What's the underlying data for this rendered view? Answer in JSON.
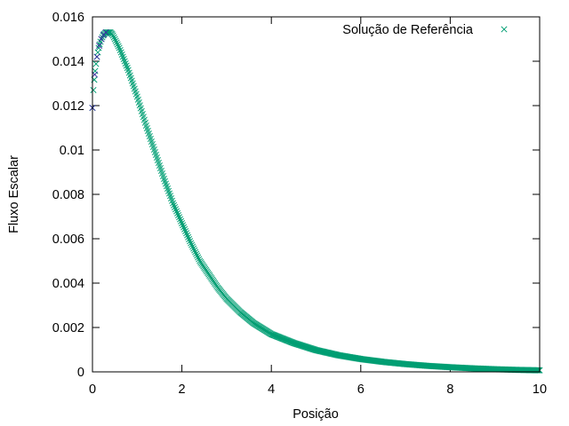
{
  "chart_data": {
    "type": "scatter",
    "title": "",
    "xlabel": "Posição",
    "ylabel": "Fluxo Escalar",
    "xlim": [
      0,
      10
    ],
    "ylim": [
      0,
      0.016
    ],
    "xticks": [
      "0",
      "2",
      "4",
      "6",
      "8",
      "10"
    ],
    "yticks": [
      "0",
      "0.002",
      "0.004",
      "0.006",
      "0.008",
      "0.01",
      "0.012",
      "0.014",
      "0.016"
    ],
    "grid": false,
    "legend_position": "top-right",
    "series": [
      {
        "name": "Solução de Referência",
        "marker": "x",
        "color": "#009e73",
        "x": [
          0.0,
          0.02,
          0.05,
          0.1,
          0.15,
          0.2,
          0.25,
          0.3,
          0.35,
          0.4,
          0.45,
          0.5,
          0.6,
          0.7,
          0.8,
          0.9,
          1.0,
          1.2,
          1.4,
          1.6,
          1.8,
          2.0,
          2.2,
          2.4,
          2.6,
          2.8,
          3.0,
          3.3,
          3.6,
          4.0,
          4.5,
          5.0,
          5.5,
          6.0,
          6.5,
          7.0,
          7.5,
          8.0,
          8.5,
          9.0,
          9.5,
          10.0
        ],
        "values": [
          0.0119,
          0.0127,
          0.0134,
          0.0142,
          0.0147,
          0.015,
          0.0152,
          0.0153,
          0.0153,
          0.0153,
          0.0152,
          0.015,
          0.0146,
          0.0141,
          0.0136,
          0.013,
          0.0124,
          0.0111,
          0.0099,
          0.0087,
          0.0076,
          0.0067,
          0.0058,
          0.005,
          0.0044,
          0.0038,
          0.0033,
          0.0027,
          0.0022,
          0.0017,
          0.0013,
          0.00098,
          0.00075,
          0.00058,
          0.00045,
          0.00035,
          0.00027,
          0.00021,
          0.00016,
          0.00012,
          9e-05,
          7e-05
        ]
      }
    ],
    "overlay_marker_color": "#3a2fa0"
  }
}
